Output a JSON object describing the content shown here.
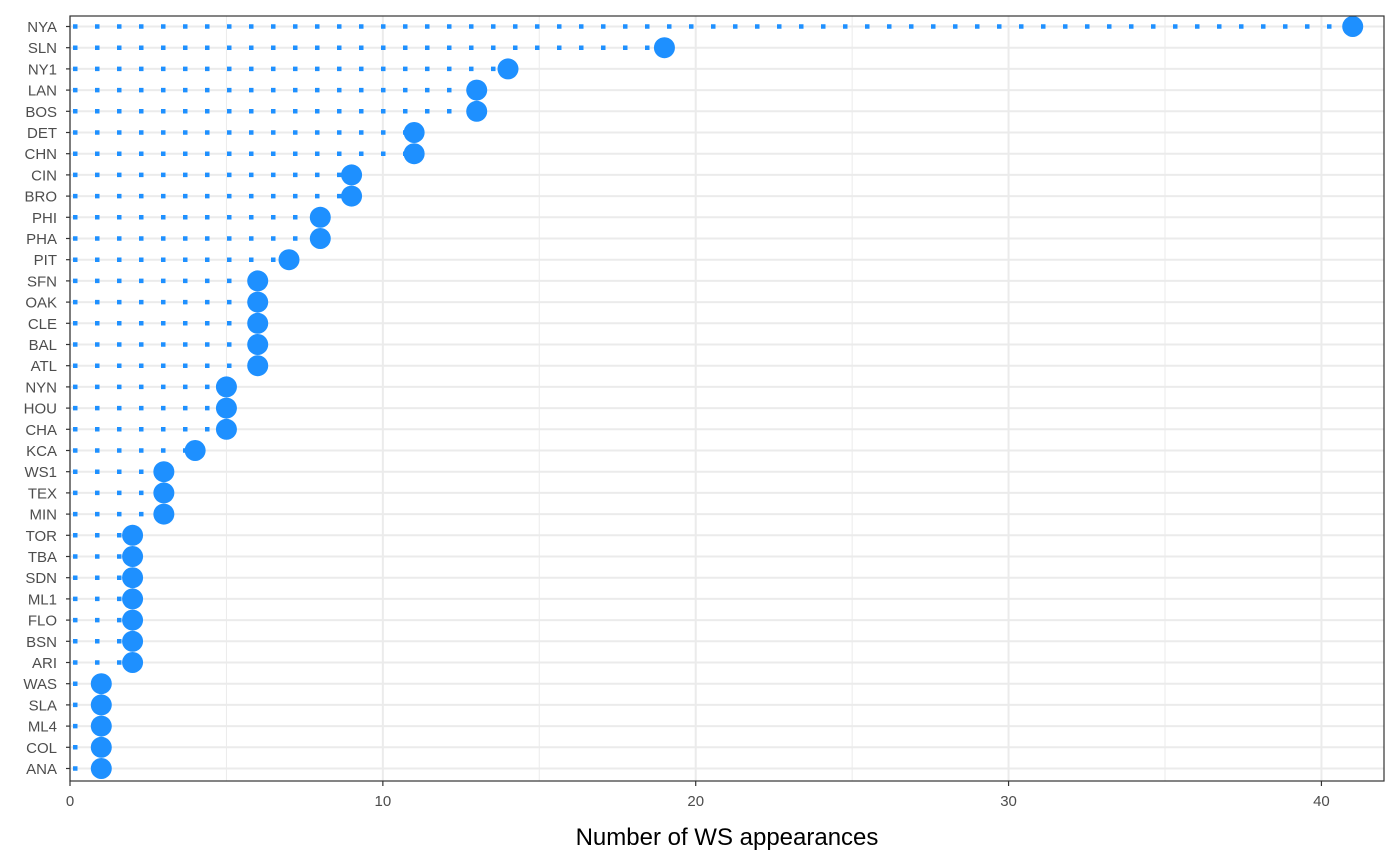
{
  "chart_data": {
    "type": "lollipop",
    "xlabel": "Number of WS appearances",
    "ylabel": "",
    "xlim": [
      0,
      42
    ],
    "x_ticks": [
      0,
      10,
      20,
      30,
      40
    ],
    "grid": true,
    "legend": "none",
    "colors": {
      "point": "#1E90FF",
      "stem": "#1E90FF",
      "grid": "#ebebeb",
      "panel_border": "#333333",
      "tick_text": "#4d4d4d"
    },
    "categories": [
      "NYA",
      "SLN",
      "NY1",
      "LAN",
      "BOS",
      "DET",
      "CHN",
      "CIN",
      "BRO",
      "PHI",
      "PHA",
      "PIT",
      "SFN",
      "OAK",
      "CLE",
      "BAL",
      "ATL",
      "NYN",
      "HOU",
      "CHA",
      "KCA",
      "WS1",
      "TEX",
      "MIN",
      "TOR",
      "TBA",
      "SDN",
      "ML1",
      "FLO",
      "BSN",
      "ARI",
      "WAS",
      "SLA",
      "ML4",
      "COL",
      "ANA"
    ],
    "values": [
      41,
      19,
      14,
      13,
      13,
      11,
      11,
      9,
      9,
      8,
      8,
      7,
      6,
      6,
      6,
      6,
      6,
      5,
      5,
      5,
      4,
      3,
      3,
      3,
      2,
      2,
      2,
      2,
      2,
      2,
      2,
      1,
      1,
      1,
      1,
      1
    ]
  }
}
